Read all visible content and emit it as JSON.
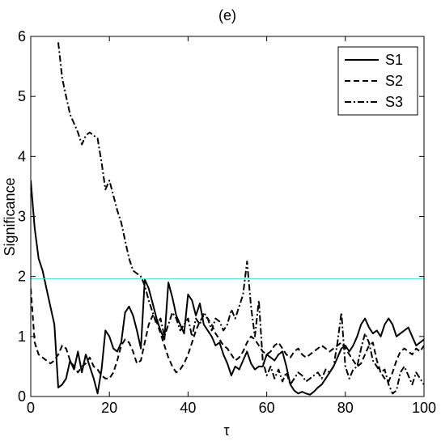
{
  "chart_data": {
    "type": "line",
    "title": "(e)",
    "xlabel": "τ",
    "ylabel": "Significance",
    "xlim": [
      0,
      100
    ],
    "ylim": [
      0,
      6
    ],
    "xticks": [
      0,
      20,
      40,
      60,
      80,
      100
    ],
    "yticks": [
      0,
      1,
      2,
      3,
      4,
      5,
      6
    ],
    "grid": false,
    "legend_position": "top-right",
    "threshold": {
      "y": 1.96,
      "color": "#40e0d0"
    },
    "series": [
      {
        "name": "S1",
        "style": "solid",
        "color": "#000000",
        "points": [
          [
            0,
            3.6
          ],
          [
            1,
            2.8
          ],
          [
            2,
            2.3
          ],
          [
            3,
            2.1
          ],
          [
            4,
            1.8
          ],
          [
            5,
            1.5
          ],
          [
            6,
            1.2
          ],
          [
            7,
            0.15
          ],
          [
            8,
            0.2
          ],
          [
            9,
            0.3
          ],
          [
            10,
            0.6
          ],
          [
            11,
            0.45
          ],
          [
            12,
            0.75
          ],
          [
            13,
            0.4
          ],
          [
            14,
            0.7
          ],
          [
            15,
            0.5
          ],
          [
            16,
            0.3
          ],
          [
            17,
            0.05
          ],
          [
            18,
            0.45
          ],
          [
            19,
            1.1
          ],
          [
            20,
            1.0
          ],
          [
            21,
            0.8
          ],
          [
            22,
            0.75
          ],
          [
            23,
            0.9
          ],
          [
            24,
            1.4
          ],
          [
            25,
            1.5
          ],
          [
            26,
            1.35
          ],
          [
            27,
            1.1
          ],
          [
            28,
            0.8
          ],
          [
            29,
            1.95
          ],
          [
            30,
            1.8
          ],
          [
            31,
            1.55
          ],
          [
            32,
            1.3
          ],
          [
            33,
            1.1
          ],
          [
            34,
            0.95
          ],
          [
            35,
            1.9
          ],
          [
            36,
            1.65
          ],
          [
            37,
            1.35
          ],
          [
            38,
            1.2
          ],
          [
            39,
            1.05
          ],
          [
            40,
            1.7
          ],
          [
            41,
            1.6
          ],
          [
            42,
            1.35
          ],
          [
            43,
            1.55
          ],
          [
            44,
            1.2
          ],
          [
            45,
            1.1
          ],
          [
            46,
            1.0
          ],
          [
            47,
            0.85
          ],
          [
            48,
            0.9
          ],
          [
            49,
            0.7
          ],
          [
            50,
            0.55
          ],
          [
            51,
            0.35
          ],
          [
            52,
            0.5
          ],
          [
            53,
            0.45
          ],
          [
            54,
            0.6
          ],
          [
            55,
            0.75
          ],
          [
            56,
            0.55
          ],
          [
            57,
            0.45
          ],
          [
            58,
            0.5
          ],
          [
            59,
            0.5
          ],
          [
            60,
            0.7
          ],
          [
            61,
            0.65
          ],
          [
            62,
            0.6
          ],
          [
            63,
            0.7
          ],
          [
            64,
            0.75
          ],
          [
            65,
            0.5
          ],
          [
            66,
            0.2
          ],
          [
            67,
            0.1
          ],
          [
            68,
            0.05
          ],
          [
            69,
            0.08
          ],
          [
            70,
            0.05
          ],
          [
            71,
            0.03
          ],
          [
            72,
            0.08
          ],
          [
            73,
            0.15
          ],
          [
            74,
            0.2
          ],
          [
            75,
            0.3
          ],
          [
            76,
            0.4
          ],
          [
            77,
            0.5
          ],
          [
            78,
            0.65
          ],
          [
            79,
            0.8
          ],
          [
            80,
            0.85
          ],
          [
            81,
            0.75
          ],
          [
            82,
            0.85
          ],
          [
            83,
            1.0
          ],
          [
            84,
            1.2
          ],
          [
            85,
            1.3
          ],
          [
            86,
            1.15
          ],
          [
            87,
            1.05
          ],
          [
            88,
            1.1
          ],
          [
            89,
            1.0
          ],
          [
            90,
            1.2
          ],
          [
            91,
            1.3
          ],
          [
            92,
            1.2
          ],
          [
            93,
            1.0
          ],
          [
            94,
            1.05
          ],
          [
            95,
            1.1
          ],
          [
            96,
            1.15
          ],
          [
            97,
            1.0
          ],
          [
            98,
            0.85
          ],
          [
            99,
            0.9
          ],
          [
            100,
            0.95
          ]
        ]
      },
      {
        "name": "S2",
        "style": "dashed",
        "color": "#000000",
        "points": [
          [
            0,
            1.8
          ],
          [
            1,
            0.9
          ],
          [
            2,
            0.7
          ],
          [
            3,
            0.65
          ],
          [
            4,
            0.6
          ],
          [
            5,
            0.55
          ],
          [
            6,
            0.6
          ],
          [
            7,
            0.7
          ],
          [
            8,
            0.85
          ],
          [
            9,
            0.8
          ],
          [
            10,
            0.6
          ],
          [
            11,
            0.5
          ],
          [
            12,
            0.4
          ],
          [
            13,
            0.5
          ],
          [
            14,
            0.55
          ],
          [
            15,
            0.65
          ],
          [
            16,
            0.5
          ],
          [
            17,
            0.45
          ],
          [
            18,
            0.35
          ],
          [
            19,
            0.3
          ],
          [
            20,
            0.3
          ],
          [
            21,
            0.4
          ],
          [
            22,
            0.6
          ],
          [
            23,
            0.85
          ],
          [
            24,
            0.95
          ],
          [
            25,
            0.9
          ],
          [
            26,
            0.75
          ],
          [
            27,
            0.55
          ],
          [
            28,
            0.6
          ],
          [
            29,
            0.9
          ],
          [
            30,
            1.2
          ],
          [
            31,
            1.35
          ],
          [
            32,
            1.25
          ],
          [
            33,
            1.05
          ],
          [
            34,
            0.85
          ],
          [
            35,
            0.65
          ],
          [
            36,
            0.5
          ],
          [
            37,
            0.4
          ],
          [
            38,
            0.45
          ],
          [
            39,
            0.55
          ],
          [
            40,
            0.7
          ],
          [
            41,
            0.9
          ],
          [
            42,
            1.1
          ],
          [
            43,
            1.25
          ],
          [
            44,
            1.35
          ],
          [
            45,
            1.3
          ],
          [
            46,
            1.2
          ],
          [
            47,
            1.05
          ],
          [
            48,
            0.95
          ],
          [
            49,
            0.85
          ],
          [
            50,
            0.8
          ],
          [
            51,
            0.7
          ],
          [
            52,
            0.6
          ],
          [
            53,
            0.65
          ],
          [
            54,
            0.75
          ],
          [
            55,
            0.9
          ],
          [
            56,
            1.0
          ],
          [
            57,
            0.95
          ],
          [
            58,
            0.85
          ],
          [
            59,
            0.75
          ],
          [
            60,
            0.7
          ],
          [
            61,
            0.75
          ],
          [
            62,
            0.85
          ],
          [
            63,
            0.9
          ],
          [
            64,
            0.8
          ],
          [
            65,
            0.7
          ],
          [
            66,
            0.65
          ],
          [
            67,
            0.75
          ],
          [
            68,
            0.8
          ],
          [
            69,
            0.7
          ],
          [
            70,
            0.65
          ],
          [
            71,
            0.7
          ],
          [
            72,
            0.75
          ],
          [
            73,
            0.8
          ],
          [
            74,
            0.85
          ],
          [
            75,
            0.8
          ],
          [
            76,
            0.75
          ],
          [
            77,
            0.8
          ],
          [
            78,
            0.85
          ],
          [
            79,
            0.9
          ],
          [
            80,
            0.8
          ],
          [
            81,
            0.7
          ],
          [
            82,
            0.6
          ],
          [
            83,
            0.5
          ],
          [
            84,
            0.55
          ],
          [
            85,
            0.7
          ],
          [
            86,
            0.85
          ],
          [
            87,
            0.9
          ],
          [
            88,
            0.6
          ],
          [
            89,
            0.4
          ],
          [
            90,
            0.3
          ],
          [
            91,
            0.25
          ],
          [
            92,
            0.4
          ],
          [
            93,
            0.6
          ],
          [
            94,
            0.75
          ],
          [
            95,
            0.8
          ],
          [
            96,
            0.75
          ],
          [
            97,
            0.7
          ],
          [
            98,
            0.8
          ],
          [
            99,
            0.75
          ],
          [
            100,
            0.85
          ]
        ]
      },
      {
        "name": "S3",
        "style": "dashdot",
        "color": "#000000",
        "points": [
          [
            7,
            5.9
          ],
          [
            8,
            5.3
          ],
          [
            9,
            5.0
          ],
          [
            10,
            4.7
          ],
          [
            11,
            4.55
          ],
          [
            12,
            4.4
          ],
          [
            13,
            4.2
          ],
          [
            14,
            4.35
          ],
          [
            15,
            4.4
          ],
          [
            16,
            4.35
          ],
          [
            17,
            4.3
          ],
          [
            18,
            3.9
          ],
          [
            19,
            3.45
          ],
          [
            20,
            3.6
          ],
          [
            21,
            3.35
          ],
          [
            22,
            3.1
          ],
          [
            23,
            2.9
          ],
          [
            24,
            2.6
          ],
          [
            25,
            2.3
          ],
          [
            26,
            2.1
          ],
          [
            27,
            2.05
          ],
          [
            28,
            2.0
          ],
          [
            29,
            1.85
          ],
          [
            30,
            1.6
          ],
          [
            31,
            1.4
          ],
          [
            32,
            1.2
          ],
          [
            33,
            1.3
          ],
          [
            34,
            1.0
          ],
          [
            35,
            1.2
          ],
          [
            36,
            1.4
          ],
          [
            37,
            1.3
          ],
          [
            38,
            1.1
          ],
          [
            39,
            1.2
          ],
          [
            40,
            1.3
          ],
          [
            41,
            1.0
          ],
          [
            42,
            1.3
          ],
          [
            43,
            1.2
          ],
          [
            44,
            1.4
          ],
          [
            45,
            1.3
          ],
          [
            46,
            1.1
          ],
          [
            47,
            1.3
          ],
          [
            48,
            1.25
          ],
          [
            49,
            1.1
          ],
          [
            50,
            1.2
          ],
          [
            51,
            1.45
          ],
          [
            52,
            1.3
          ],
          [
            53,
            1.5
          ],
          [
            54,
            1.7
          ],
          [
            55,
            2.25
          ],
          [
            56,
            1.5
          ],
          [
            57,
            1.0
          ],
          [
            58,
            1.6
          ],
          [
            59,
            0.6
          ],
          [
            60,
            0.35
          ],
          [
            61,
            0.5
          ],
          [
            62,
            0.3
          ],
          [
            63,
            0.45
          ],
          [
            64,
            0.25
          ],
          [
            65,
            0.4
          ],
          [
            66,
            0.2
          ],
          [
            67,
            0.3
          ],
          [
            68,
            0.4
          ],
          [
            69,
            0.35
          ],
          [
            70,
            0.25
          ],
          [
            71,
            0.3
          ],
          [
            72,
            0.35
          ],
          [
            73,
            0.4
          ],
          [
            74,
            0.3
          ],
          [
            75,
            0.45
          ],
          [
            76,
            0.4
          ],
          [
            77,
            0.5
          ],
          [
            78,
            0.9
          ],
          [
            79,
            1.4
          ],
          [
            80,
            0.5
          ],
          [
            81,
            0.3
          ],
          [
            82,
            0.45
          ],
          [
            83,
            0.5
          ],
          [
            84,
            0.8
          ],
          [
            85,
            1.05
          ],
          [
            86,
            0.9
          ],
          [
            87,
            0.6
          ],
          [
            88,
            0.5
          ],
          [
            89,
            0.4
          ],
          [
            90,
            0.45
          ],
          [
            91,
            0.2
          ],
          [
            92,
            0.05
          ],
          [
            93,
            0.1
          ],
          [
            94,
            0.4
          ],
          [
            95,
            0.5
          ],
          [
            96,
            0.35
          ],
          [
            97,
            0.2
          ],
          [
            98,
            0.4
          ],
          [
            99,
            0.3
          ],
          [
            100,
            0.2
          ]
        ]
      }
    ]
  }
}
